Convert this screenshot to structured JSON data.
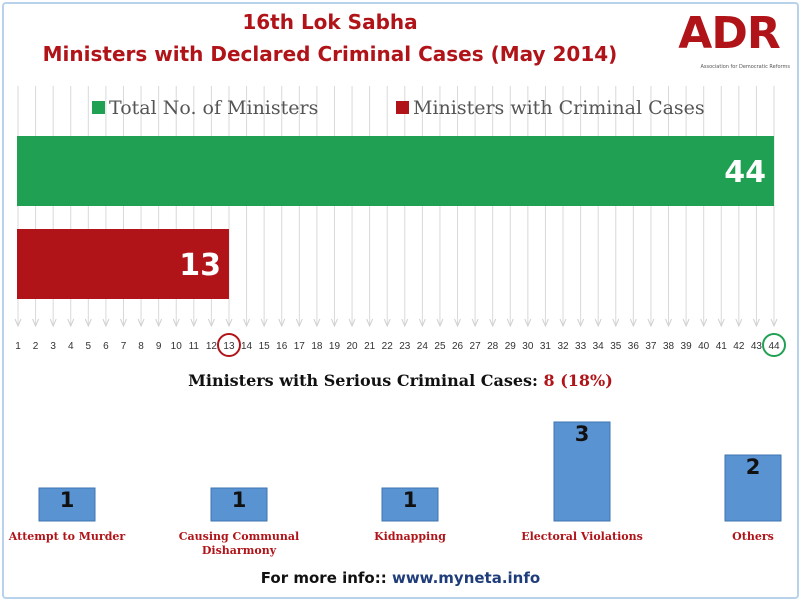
{
  "header": {
    "title_line1": "16th Lok Sabha",
    "title_line2": "Ministers with Declared Criminal Cases (May 2014)",
    "logo_text": "ADR",
    "logo_tagline": "Association for Democratic Reforms"
  },
  "colors": {
    "title": "#b01419",
    "total_bar": "#20a052",
    "criminal_bar": "#b01419",
    "serious_bar": "#5a93d2",
    "url": "#1f3d7a"
  },
  "chart_data": [
    {
      "type": "bar",
      "orientation": "horizontal",
      "categories": [
        "Total No. of Ministers",
        "Ministers with Criminal Cases"
      ],
      "values": [
        44,
        13
      ],
      "data_labels": [
        "44",
        "13"
      ],
      "legend": [
        "Total No. of Ministers",
        "Ministers with Criminal Cases"
      ],
      "legend_position": "top",
      "xlim": [
        0,
        44
      ],
      "x_ticks": [
        "1",
        "2",
        "3",
        "4",
        "5",
        "6",
        "7",
        "8",
        "9",
        "10",
        "11",
        "12",
        "13",
        "14",
        "15",
        "16",
        "17",
        "18",
        "19",
        "20",
        "21",
        "22",
        "23",
        "24",
        "25",
        "26",
        "27",
        "28",
        "29",
        "30",
        "31",
        "32",
        "33",
        "34",
        "35",
        "36",
        "37",
        "38",
        "39",
        "40",
        "41",
        "42",
        "43",
        "44"
      ],
      "highlighted_ticks": [
        13,
        44
      ],
      "grid": true
    },
    {
      "type": "bar",
      "title_prefix": "Ministers with Serious Criminal Cases: ",
      "title_value": "8 (18%)",
      "categories": [
        "Attempt to Murder",
        "Causing Communal Disharmony",
        "Kidnapping",
        "Electoral Violations",
        "Others"
      ],
      "values": [
        1,
        1,
        1,
        3,
        2
      ],
      "data_labels": [
        "1",
        "1",
        "1",
        "3",
        "2"
      ],
      "ylim": [
        0,
        3
      ]
    }
  ],
  "footer": {
    "prefix": "For more info:: ",
    "url": "www.myneta.info"
  }
}
